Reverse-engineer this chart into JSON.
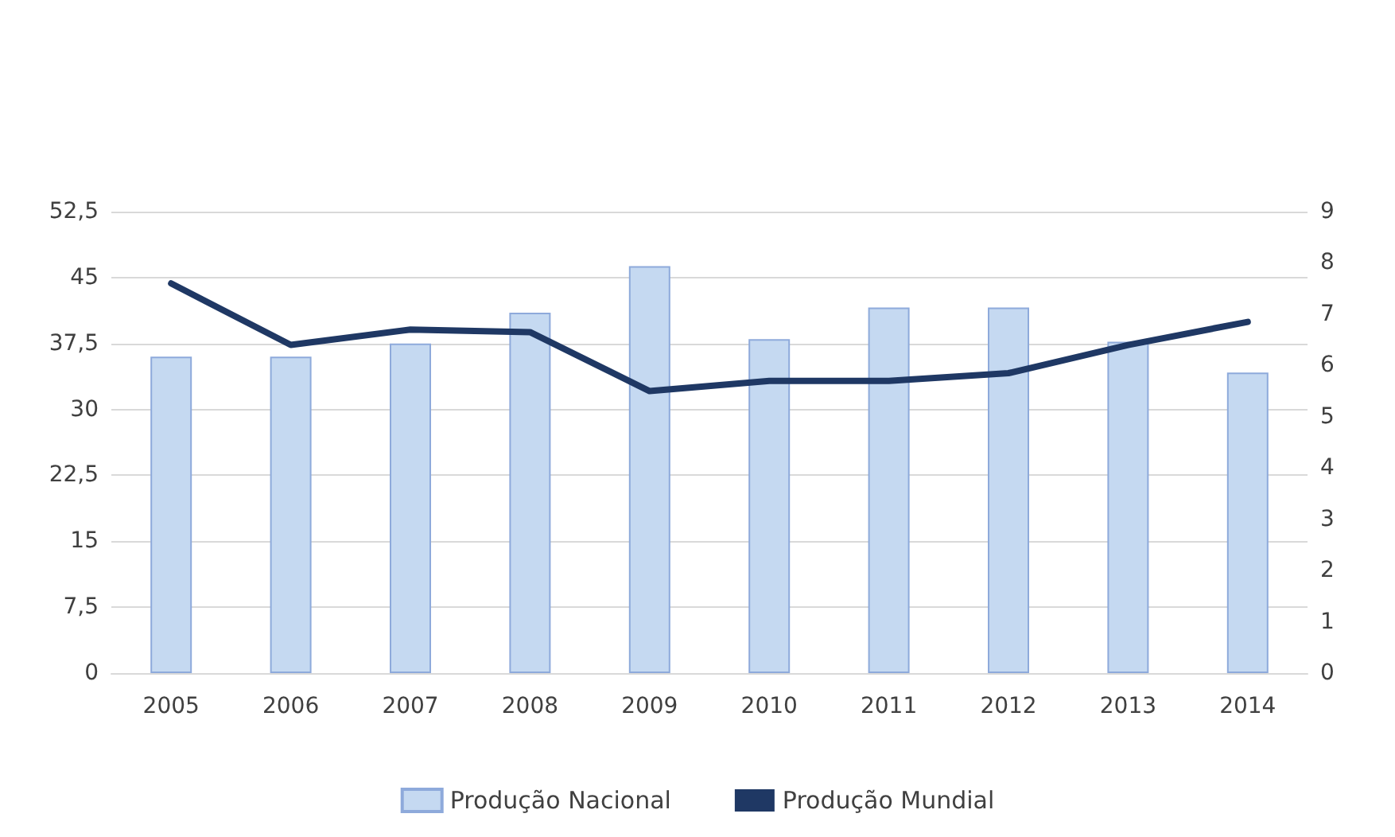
{
  "chart_data": {
    "type": "bar",
    "categories": [
      "2005",
      "2006",
      "2007",
      "2008",
      "2009",
      "2010",
      "2011",
      "2012",
      "2013",
      "2014"
    ],
    "series": [
      {
        "name": "Produção Nacional",
        "color": "#c5d9f1",
        "values": [
          36,
          36,
          37.5,
          41,
          46.3,
          38,
          41.6,
          41.6,
          37.7,
          34.2
        ]
      },
      {
        "name": "Produção Mundial",
        "type": "line",
        "axis": "y2",
        "color": "#1f3864",
        "values": [
          7.6,
          6.4,
          6.7,
          6.65,
          5.5,
          5.7,
          5.7,
          5.85,
          6.4,
          6.85
        ]
      }
    ],
    "ylim": [
      0,
      52.5
    ],
    "yticks": [
      0,
      {
        "value": 7.5,
        "label": "7,5"
      },
      15,
      {
        "value": 22.5,
        "label": "22,5"
      },
      30,
      {
        "value": 37.5,
        "label": "37,5"
      },
      45,
      {
        "value": 52.5,
        "label": "52,5"
      }
    ],
    "y2lim": [
      0,
      9
    ],
    "y2ticks": [
      0,
      1,
      2,
      3,
      4,
      5,
      6,
      7,
      8,
      9
    ],
    "grid": "y",
    "legend": "bottom",
    "marker": "none",
    "line_style": "solid"
  }
}
